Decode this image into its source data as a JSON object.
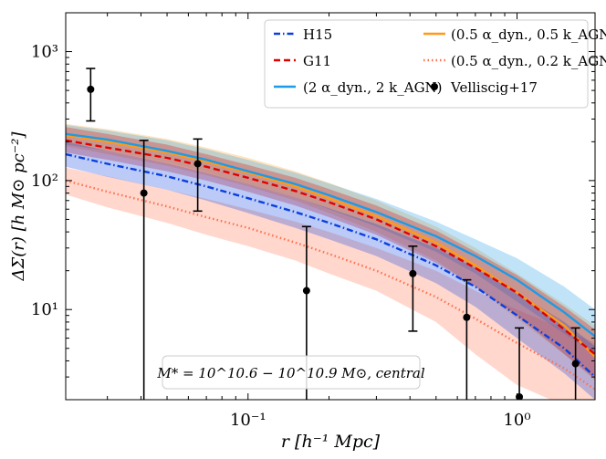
{
  "chart_data": {
    "type": "line",
    "xscale": "log",
    "yscale": "log",
    "xlabel": "r [h⁻¹ Mpc]",
    "ylabel": "ΔΣ(r) [h M⊙ pc⁻²]",
    "xlim": [
      0.021,
      1.95
    ],
    "ylim": [
      2.0,
      2000
    ],
    "x_ticks": [
      {
        "value": 0.1,
        "label": "10⁻¹"
      },
      {
        "value": 1,
        "label": "10⁰"
      }
    ],
    "y_ticks": [
      {
        "value": 10,
        "label": "10¹"
      },
      {
        "value": 100,
        "label": "10²"
      },
      {
        "value": 1000,
        "label": "10³"
      }
    ],
    "annotation": "M* = 10^10.6 − 10^10.9 M⊙, central",
    "legend_position": "top-right",
    "series": [
      {
        "name": "(0.5 αdyn., 0.2 kAGN)",
        "legend_label": "(0.5 α_dyn., 0.2 k_AGN)",
        "style": "dotted",
        "color": "#ff6f4d",
        "x": [
          0.021,
          0.03,
          0.05,
          0.07,
          0.1,
          0.15,
          0.2,
          0.3,
          0.5,
          0.7,
          1.0,
          1.5,
          1.95
        ],
        "y": [
          100,
          82,
          63,
          52,
          43,
          33,
          27,
          20,
          12.5,
          8.5,
          5.5,
          3.5,
          2.4
        ],
        "band_lower": [
          78,
          62,
          47,
          38,
          31,
          24,
          19,
          14,
          8.0,
          4.5,
          2.6,
          1.8,
          1.3
        ],
        "band_upper": [
          126,
          108,
          85,
          72,
          60,
          48,
          40,
          30,
          20,
          14,
          10,
          7,
          5.5
        ]
      },
      {
        "name": "(0.5 αdyn., 0.5 kAGN)",
        "legend_label": "(0.5 α_dyn., 0.5 k_AGN)",
        "style": "solid",
        "color": "#ff9a18",
        "x": [
          0.021,
          0.03,
          0.05,
          0.07,
          0.1,
          0.15,
          0.2,
          0.3,
          0.5,
          0.7,
          1.0,
          1.5,
          1.95
        ],
        "y": [
          225,
          200,
          165,
          140,
          115,
          90,
          73,
          53,
          33,
          22,
          13.5,
          7.5,
          4.3
        ],
        "band_lower": [
          185,
          160,
          130,
          110,
          90,
          70,
          56,
          40,
          24,
          15,
          8.5,
          4.5,
          2.8
        ],
        "band_upper": [
          275,
          250,
          210,
          180,
          150,
          118,
          96,
          70,
          44,
          30,
          19,
          11,
          7.5
        ]
      },
      {
        "name": "(2 αdyn., 2 kAGN)",
        "legend_label": "(2 α_dyn., 2 k_AGN)",
        "style": "solid",
        "color": "#1d9be6",
        "x": [
          0.021,
          0.03,
          0.05,
          0.07,
          0.1,
          0.15,
          0.2,
          0.3,
          0.5,
          0.7,
          1.0,
          1.5,
          1.95
        ],
        "y": [
          230,
          208,
          170,
          145,
          118,
          94,
          77,
          57,
          37,
          26,
          17,
          9.5,
          6.2
        ],
        "band_lower": [
          190,
          170,
          138,
          116,
          94,
          74,
          60,
          44,
          28,
          19,
          11.5,
          6.5,
          4.5
        ],
        "band_upper": [
          270,
          245,
          205,
          175,
          145,
          115,
          95,
          72,
          48,
          35,
          25,
          15,
          10
        ]
      },
      {
        "name": "G11",
        "legend_label": "G11",
        "style": "dashed",
        "color": "#e00000",
        "x": [
          0.021,
          0.03,
          0.05,
          0.07,
          0.1,
          0.15,
          0.2,
          0.3,
          0.5,
          0.7,
          1.0,
          1.5,
          1.95
        ],
        "y": [
          205,
          180,
          150,
          128,
          105,
          83,
          68,
          50,
          31,
          21,
          13.5,
          7.0,
          4.5
        ],
        "band_lower": [
          165,
          145,
          118,
          100,
          82,
          64,
          52,
          38,
          23,
          15,
          9.0,
          4.5,
          2.9
        ],
        "band_upper": [
          260,
          230,
          190,
          160,
          132,
          105,
          86,
          64,
          41,
          28,
          18.5,
          10.5,
          7.0
        ]
      },
      {
        "name": "H15",
        "legend_label": "H15",
        "style": "dashdot",
        "color": "#0a3fe0",
        "x": [
          0.021,
          0.03,
          0.05,
          0.07,
          0.1,
          0.15,
          0.2,
          0.3,
          0.5,
          0.7,
          1.0,
          1.5,
          1.95
        ],
        "y": [
          160,
          135,
          108,
          90,
          73,
          57,
          47,
          35,
          22,
          15,
          9.0,
          5.0,
          3.0
        ],
        "band_lower": [
          128,
          107,
          85,
          70,
          56,
          43,
          35,
          26,
          16,
          10.5,
          6.0,
          3.2,
          2.0
        ],
        "band_upper": [
          200,
          170,
          137,
          115,
          94,
          74,
          61,
          46,
          30,
          21,
          13.5,
          8.0,
          5.2
        ]
      }
    ],
    "observations": {
      "name": "Velliscig+17",
      "legend_label": "Velliscig+17",
      "color": "#000000",
      "points": [
        {
          "x": 0.026,
          "y": 510,
          "lo": 290,
          "hi": 740
        },
        {
          "x": 0.041,
          "y": 80,
          "lo": 1.0,
          "hi": 205
        },
        {
          "x": 0.065,
          "y": 135,
          "lo": 58,
          "hi": 210
        },
        {
          "x": 0.165,
          "y": 14,
          "lo": 1.0,
          "hi": 44
        },
        {
          "x": 0.41,
          "y": 19,
          "lo": 6.8,
          "hi": 31
        },
        {
          "x": 0.65,
          "y": 8.7,
          "lo": 1.0,
          "hi": 17
        },
        {
          "x": 1.02,
          "y": 2.1,
          "lo": 1.0,
          "hi": 7.2
        },
        {
          "x": 1.65,
          "y": 3.8,
          "lo": 1.0,
          "hi": 7.2
        }
      ]
    }
  }
}
